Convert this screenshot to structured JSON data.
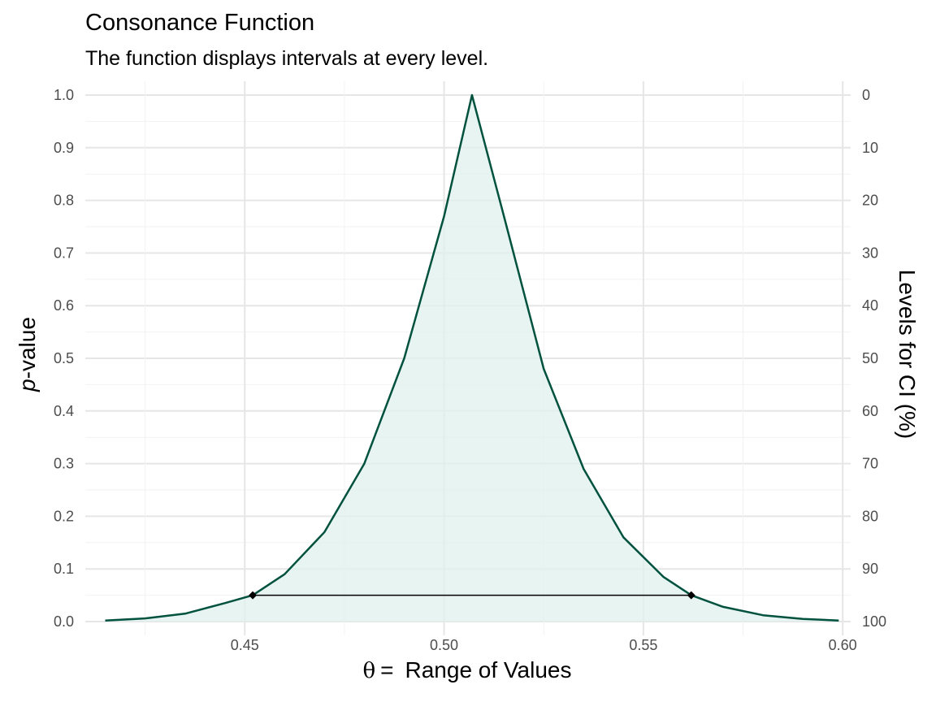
{
  "chart_data": {
    "type": "area",
    "title": "Consonance Function",
    "subtitle": "The function displays intervals at every level.",
    "xlabel_symbol": "θ",
    "xlabel_eq": "=",
    "xlabel_text": "Range of Values",
    "ylabel_italic": "p",
    "ylabel_rest": "-value",
    "ylabel_right": "Levels for CI (%)",
    "xlim": [
      0.41,
      0.602
    ],
    "ylim": [
      0,
      1
    ],
    "x_ticks": [
      "0.45",
      "0.50",
      "0.55",
      "0.60"
    ],
    "y_ticks": [
      "0.0",
      "0.1",
      "0.2",
      "0.3",
      "0.4",
      "0.5",
      "0.6",
      "0.7",
      "0.8",
      "0.9",
      "1.0"
    ],
    "y_right_ticks": [
      "100",
      "90",
      "80",
      "70",
      "60",
      "50",
      "40",
      "30",
      "20",
      "10",
      "0"
    ],
    "grid": true,
    "series": [
      {
        "x": [
          0.415,
          0.425,
          0.435,
          0.44,
          0.445,
          0.452,
          0.46,
          0.47,
          0.48,
          0.49,
          0.5,
          0.507,
          0.515,
          0.525,
          0.535,
          0.545,
          0.555,
          0.562,
          0.57,
          0.58,
          0.59,
          0.599
        ],
        "y": [
          0.002,
          0.006,
          0.015,
          0.025,
          0.035,
          0.05,
          0.09,
          0.17,
          0.3,
          0.5,
          0.77,
          1.0,
          0.77,
          0.48,
          0.29,
          0.16,
          0.085,
          0.05,
          0.028,
          0.012,
          0.005,
          0.002
        ]
      }
    ],
    "interval": {
      "lower": 0.452,
      "upper": 0.562,
      "p": 0.05
    },
    "colors": {
      "line": "#00523f",
      "fill": "#dff0ee",
      "interval": "#000000",
      "grid_major": "#e6e6e6",
      "grid_minor": "#f2f2f2"
    }
  }
}
